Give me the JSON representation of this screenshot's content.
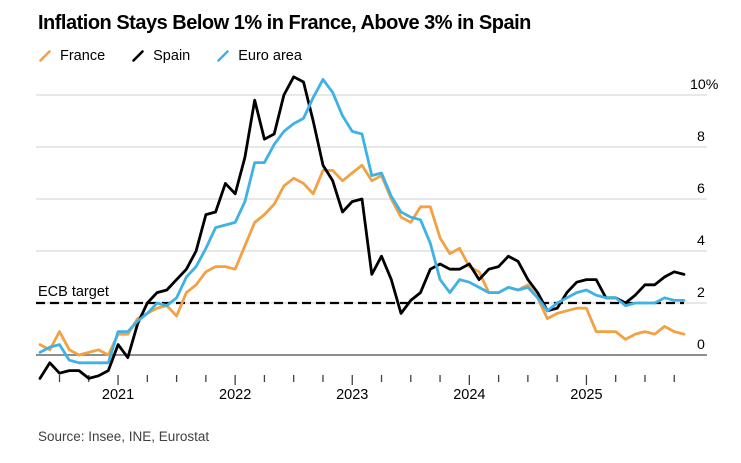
{
  "header": {
    "title": "Inflation Stays Below 1% in France, Above 3% in Spain"
  },
  "legend": [
    {
      "label": "France",
      "color": "#F2A143",
      "marker": "slash-icon"
    },
    {
      "label": "Spain",
      "color": "#000000",
      "marker": "slash-icon"
    },
    {
      "label": "Euro area",
      "color": "#3FB2E5",
      "marker": "slash-icon"
    }
  ],
  "chart_data": {
    "type": "line",
    "title": "Inflation Stays Below 1% in France, Above 3% in Spain",
    "unit": "% year-over-year",
    "frequency": "monthly",
    "x_start": "2020-05",
    "x_end": "2025-11",
    "grid": "horizontal",
    "legend_position": "top-left",
    "ylim": [
      -1.2,
      10.9
    ],
    "y_axis": {
      "side": "right",
      "ticks": [
        {
          "value": 0,
          "label": "0"
        },
        {
          "value": 2,
          "label": "2"
        },
        {
          "value": 4,
          "label": "4"
        },
        {
          "value": 6,
          "label": "6"
        },
        {
          "value": 8,
          "label": "8"
        },
        {
          "value": 10,
          "label": "10%"
        }
      ]
    },
    "x_axis": {
      "first_tick_index": 2,
      "tick_interval_months": 3,
      "year_labels": [
        {
          "label": "2021",
          "index": 8
        },
        {
          "label": "2022",
          "index": 20
        },
        {
          "label": "2023",
          "index": 32
        },
        {
          "label": "2024",
          "index": 44
        },
        {
          "label": "2025",
          "index": 56
        }
      ]
    },
    "annotation": {
      "label": "ECB target",
      "value": 2,
      "style": "dashed",
      "color": "#000000"
    },
    "series": [
      {
        "name": "France",
        "color": "#F2A143",
        "values": [
          0.4,
          0.2,
          0.9,
          0.2,
          0.0,
          0.1,
          0.2,
          0.0,
          0.8,
          0.8,
          1.4,
          1.6,
          1.8,
          1.9,
          1.5,
          2.4,
          2.7,
          3.2,
          3.4,
          3.4,
          3.3,
          4.2,
          5.1,
          5.4,
          5.8,
          6.5,
          6.8,
          6.6,
          6.2,
          7.1,
          7.1,
          6.7,
          7.0,
          7.3,
          6.7,
          6.9,
          6.0,
          5.3,
          5.1,
          5.7,
          5.7,
          4.5,
          3.9,
          4.1,
          3.4,
          3.2,
          2.4,
          2.4,
          2.6,
          2.5,
          2.7,
          2.2,
          1.4,
          1.6,
          1.7,
          1.8,
          1.8,
          0.9,
          0.9,
          0.9,
          0.6,
          0.8,
          0.9,
          0.8,
          1.1,
          0.9,
          0.8
        ]
      },
      {
        "name": "Spain",
        "color": "#000000",
        "values": [
          -0.9,
          -0.3,
          -0.7,
          -0.6,
          -0.6,
          -0.9,
          -0.8,
          -0.6,
          0.4,
          -0.1,
          1.2,
          2.0,
          2.4,
          2.5,
          2.9,
          3.3,
          4.0,
          5.4,
          5.5,
          6.6,
          6.2,
          7.6,
          9.8,
          8.3,
          8.5,
          10.0,
          10.7,
          10.5,
          9.0,
          7.3,
          6.7,
          5.5,
          5.9,
          6.0,
          3.1,
          3.8,
          2.9,
          1.6,
          2.1,
          2.4,
          3.3,
          3.5,
          3.3,
          3.3,
          3.5,
          2.9,
          3.3,
          3.4,
          3.8,
          3.6,
          2.9,
          2.4,
          1.7,
          1.8,
          2.4,
          2.8,
          2.9,
          2.9,
          2.2,
          2.2,
          2.0,
          2.3,
          2.7,
          2.7,
          3.0,
          3.2,
          3.1
        ]
      },
      {
        "name": "Euro area",
        "color": "#3FB2E5",
        "values": [
          0.1,
          0.3,
          0.4,
          -0.2,
          -0.3,
          -0.3,
          -0.3,
          -0.3,
          0.9,
          0.9,
          1.3,
          1.6,
          2.0,
          1.9,
          2.2,
          3.0,
          3.4,
          4.1,
          4.9,
          5.0,
          5.1,
          5.9,
          7.4,
          7.4,
          8.1,
          8.6,
          8.9,
          9.1,
          9.9,
          10.6,
          10.1,
          9.2,
          8.6,
          8.5,
          6.9,
          7.0,
          6.1,
          5.5,
          5.3,
          5.2,
          4.3,
          2.9,
          2.4,
          2.9,
          2.8,
          2.6,
          2.4,
          2.4,
          2.6,
          2.5,
          2.6,
          2.2,
          1.7,
          2.0,
          2.2,
          2.4,
          2.5,
          2.3,
          2.2,
          2.2,
          1.9,
          2.0,
          2.0,
          2.0,
          2.2,
          2.1,
          2.1
        ]
      }
    ],
    "style": {
      "gridline_color": "#D9D9D9",
      "zero_line_color": "#7F7F7F",
      "tick_color": "#404040",
      "axis_label_color": "#000000"
    }
  },
  "footer": {
    "source": "Source: Insee, INE, Eurostat"
  }
}
